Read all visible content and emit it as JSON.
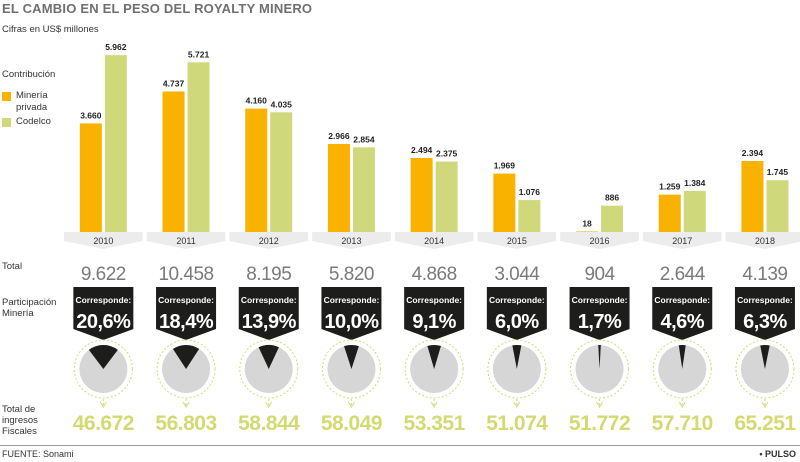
{
  "title": "EL CAMBIO EN EL PESO DEL ROYALTY MINERO",
  "subtitle": "Cifras en US$ millones",
  "labels": {
    "contribucion": "Contribución",
    "total": "Total",
    "participacion": "Participación Minería",
    "ingresos": "Total de ingresos Fiscales",
    "corresponde": "Corresponde:"
  },
  "legend": [
    {
      "name": "Minería privada",
      "color": "#f9b200"
    },
    {
      "name": "Codelco",
      "color": "#cfd97c"
    }
  ],
  "colors": {
    "privada": "#f9b200",
    "codelco": "#cfd97c",
    "tag": "#1d1d1b",
    "ingresos": "#d4da72",
    "pie_bg": "#d6d6d6",
    "pie_slice": "#1d1d1b",
    "year_band": "#ececec"
  },
  "chart_data": {
    "type": "bar",
    "title": "EL CAMBIO EN EL PESO DEL ROYALTY MINERO",
    "subtitle": "Cifras en US$ millones",
    "categories": [
      "2010",
      "2011",
      "2012",
      "2013",
      "2014",
      "2015",
      "2016",
      "2017",
      "2018"
    ],
    "series": [
      {
        "name": "Minería privada",
        "values": [
          3660,
          4737,
          4160,
          2966,
          2494,
          1969,
          18,
          1259,
          2394
        ],
        "labels": [
          "3.660",
          "4.737",
          "4.160",
          "2.966",
          "2.494",
          "1.969",
          "18",
          "1.259",
          "2.394"
        ]
      },
      {
        "name": "Codelco",
        "values": [
          5962,
          5721,
          4035,
          2854,
          2375,
          1076,
          886,
          1384,
          1745
        ],
        "labels": [
          "5.962",
          "5.721",
          "4.035",
          "2.854",
          "2.375",
          "1.076",
          "886",
          "1.384",
          "1.745"
        ]
      }
    ],
    "totals": [
      "9.622",
      "10.458",
      "8.195",
      "5.820",
      "4.868",
      "3.044",
      "904",
      "2.644",
      "4.139"
    ],
    "participacion": [
      {
        "label": "20,6%",
        "value": 20.6
      },
      {
        "label": "18,4%",
        "value": 18.4
      },
      {
        "label": "13,9%",
        "value": 13.9
      },
      {
        "label": "10,0%",
        "value": 10.0
      },
      {
        "label": "9,1%",
        "value": 9.1
      },
      {
        "label": "6,0%",
        "value": 6.0
      },
      {
        "label": "1,7%",
        "value": 1.7
      },
      {
        "label": "4,6%",
        "value": 4.6
      },
      {
        "label": "6,3%",
        "value": 6.3
      }
    ],
    "ingresos_fiscales": [
      "46.672",
      "56.803",
      "58.844",
      "58.049",
      "53.351",
      "51.074",
      "51.772",
      "57.710",
      "65.251"
    ],
    "ylim": [
      0,
      6000
    ],
    "grid": false,
    "legend_position": "left"
  },
  "source": "FUENTE: Sonami",
  "brand": "• PULSO"
}
